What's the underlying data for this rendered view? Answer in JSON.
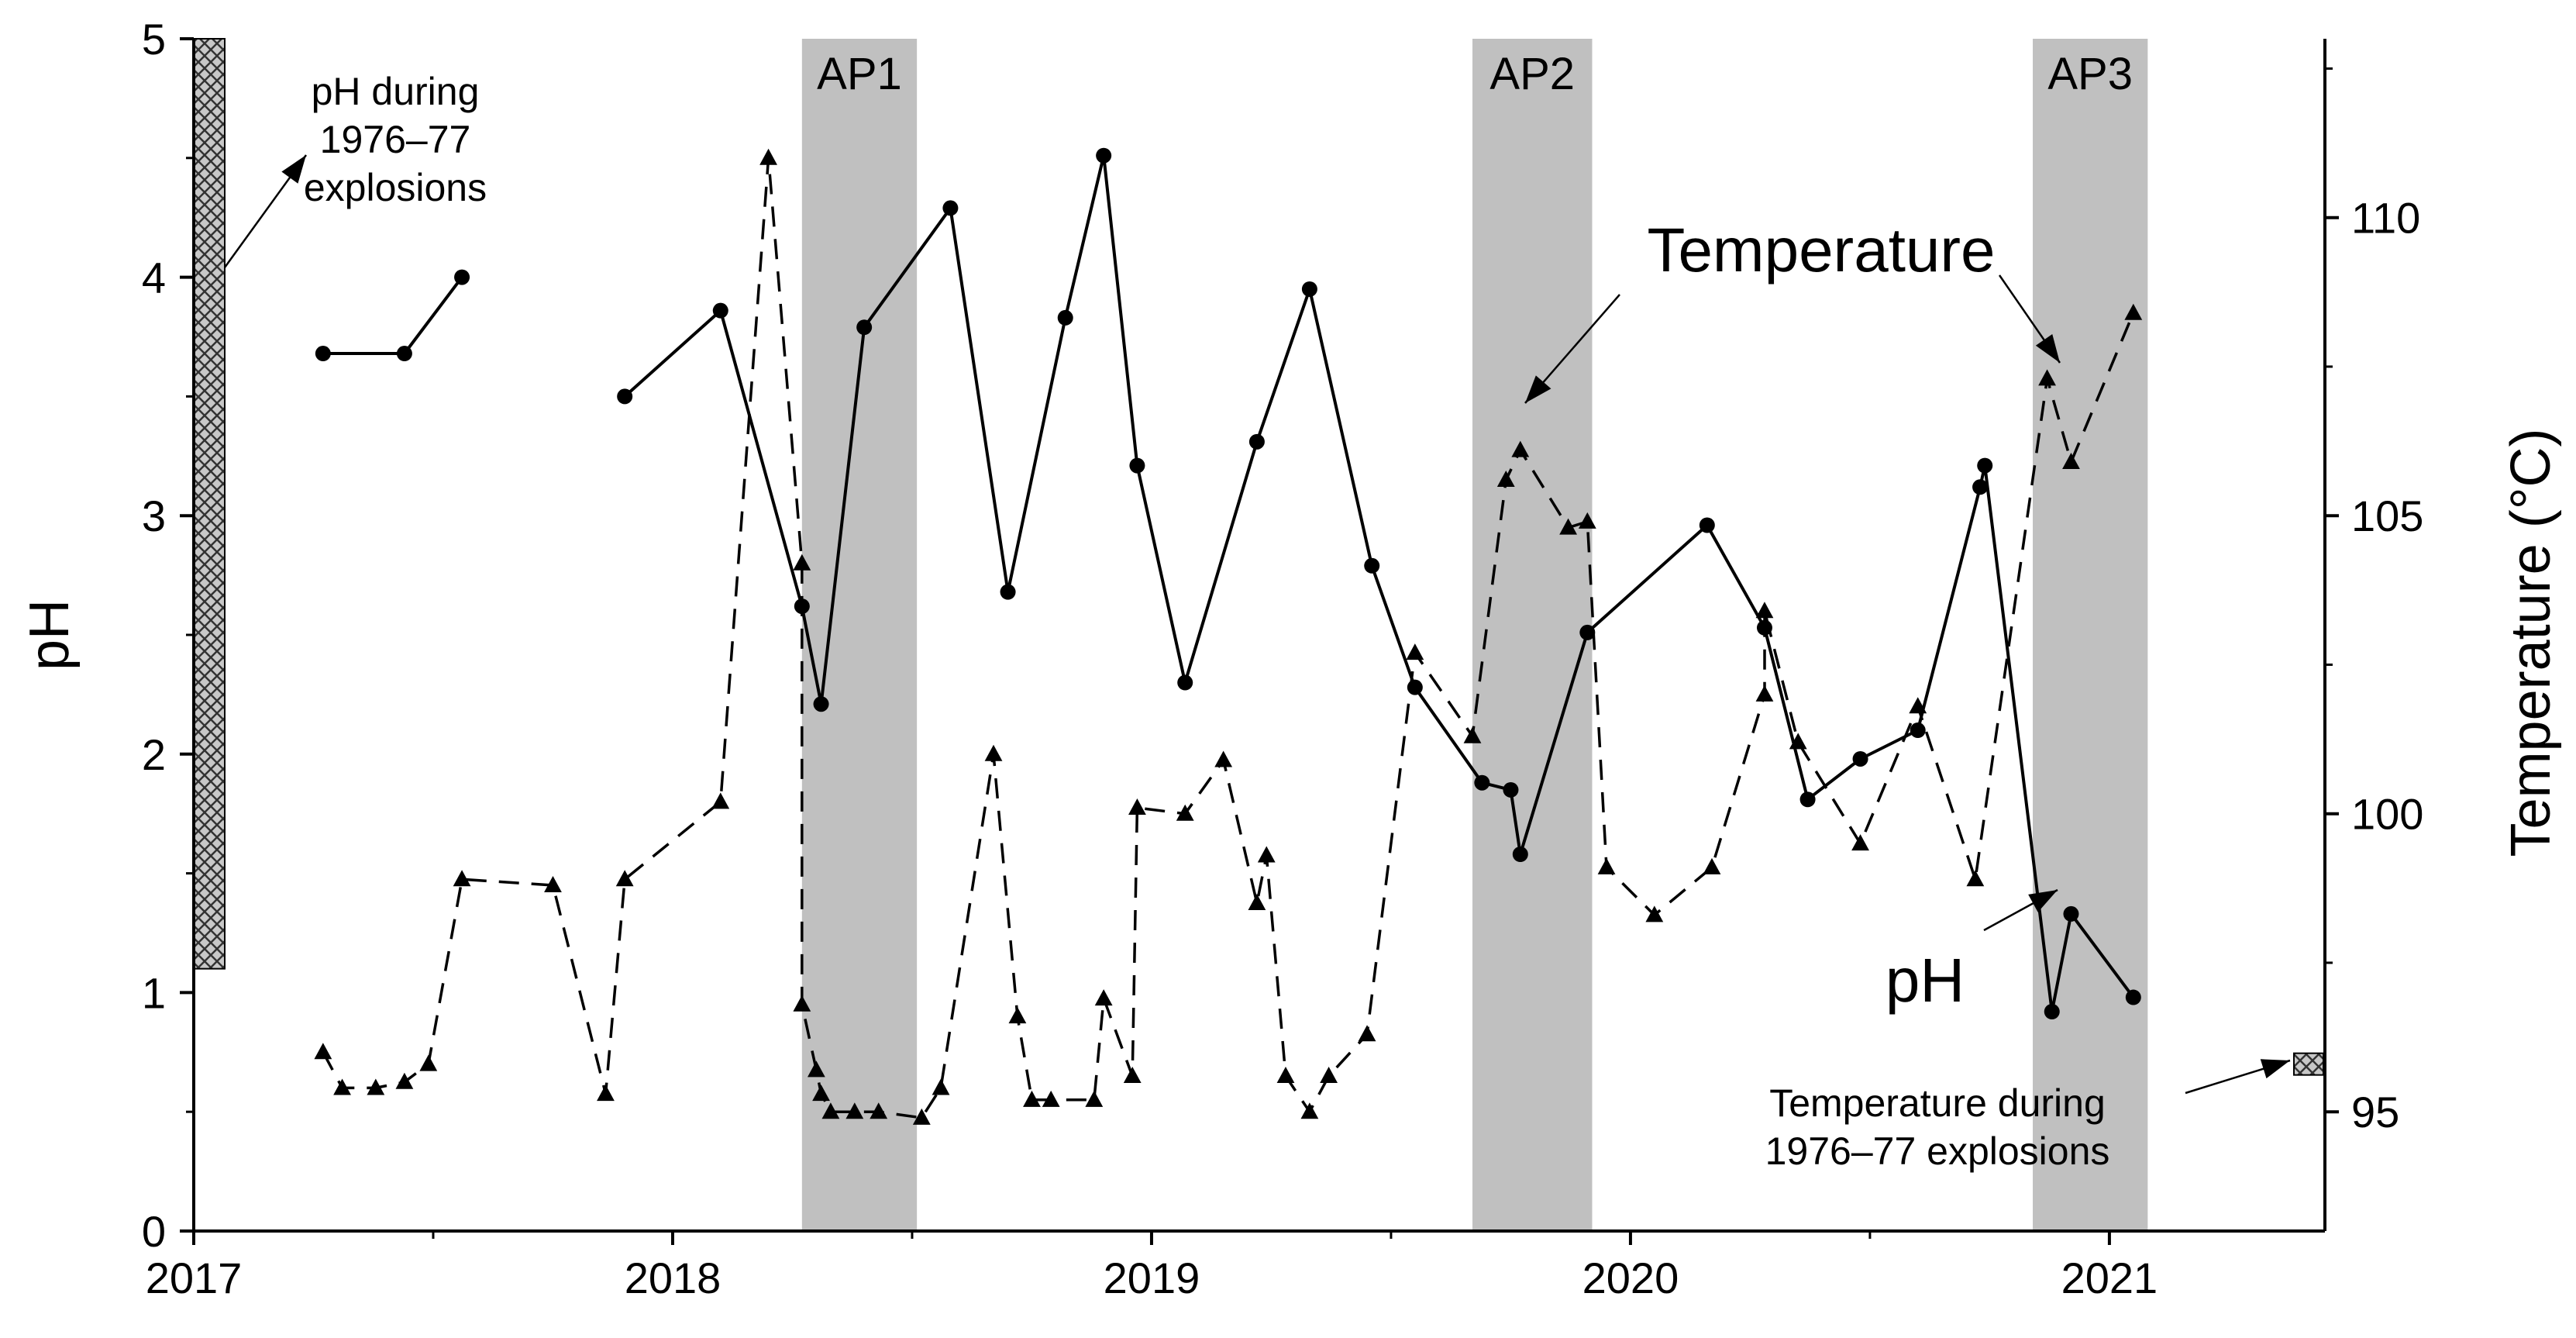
{
  "chart_data": {
    "type": "line",
    "title": "",
    "xlabel": "",
    "ylabel": "pH",
    "y2label": "Temperature (°C)",
    "xlim": [
      2017.0,
      2021.45
    ],
    "ylim": [
      0,
      5
    ],
    "y2lim": [
      93,
      113
    ],
    "xticks": [
      "2017",
      "2018",
      "2019",
      "2020",
      "2021"
    ],
    "xtick_values": [
      2017,
      2018,
      2019,
      2020,
      2021
    ],
    "yticks": [
      "0",
      "1",
      "2",
      "3",
      "4",
      "5"
    ],
    "ytick_values": [
      0,
      1,
      2,
      3,
      4,
      5
    ],
    "y2ticks": [
      "95",
      "100",
      "105",
      "110"
    ],
    "y2tick_values": [
      95,
      100,
      105,
      110
    ],
    "bands": [
      {
        "label": "AP1",
        "x": [
          2018.27,
          2018.51
        ]
      },
      {
        "label": "AP2",
        "x": [
          2019.67,
          2019.92
        ]
      },
      {
        "label": "AP3",
        "x": [
          2020.84,
          2021.08
        ]
      }
    ],
    "historic": {
      "ph_label": "pH during 1976–77 explosions",
      "ph_label_lines": [
        "pH during",
        "1976–77",
        "explosions"
      ],
      "ph_range": [
        1.1,
        5.0
      ],
      "temp_label": "Temperature during 1976–77 explosions",
      "temp_label_lines": [
        "Temperature during",
        "1976–77 explosions"
      ],
      "temp_value": 95.8
    },
    "annotations": {
      "temperature": "Temperature",
      "ph": "pH"
    },
    "series": [
      {
        "name": "pH",
        "axis": "left",
        "style": "solid",
        "marker": "circle",
        "segments": [
          [
            [
              2017.27,
              3.68
            ],
            [
              2017.44,
              3.68
            ],
            [
              2017.56,
              4.0
            ]
          ],
          [
            [
              2017.9,
              3.5
            ],
            [
              2018.1,
              3.86
            ],
            [
              2018.27,
              2.62
            ],
            [
              2018.31,
              2.21
            ],
            [
              2018.4,
              3.79
            ],
            [
              2018.58,
              4.29
            ],
            [
              2018.7,
              2.68
            ],
            [
              2018.82,
              3.83
            ],
            [
              2018.9,
              4.51
            ],
            [
              2018.97,
              3.21
            ],
            [
              2019.07,
              2.3
            ],
            [
              2019.22,
              3.31
            ],
            [
              2019.33,
              3.95
            ],
            [
              2019.46,
              2.79
            ],
            [
              2019.55,
              2.28
            ],
            [
              2019.69,
              1.88
            ],
            [
              2019.75,
              1.85
            ],
            [
              2019.77,
              1.58
            ],
            [
              2019.91,
              2.51
            ],
            [
              2020.16,
              2.96
            ],
            [
              2020.28,
              2.53
            ],
            [
              2020.37,
              1.81
            ],
            [
              2020.48,
              1.98
            ],
            [
              2020.6,
              2.1
            ],
            [
              2020.73,
              3.12
            ],
            [
              2020.74,
              3.21
            ],
            [
              2020.88,
              0.92
            ],
            [
              2020.92,
              1.33
            ],
            [
              2021.05,
              0.98
            ]
          ]
        ]
      },
      {
        "name": "Temperature",
        "axis": "right",
        "style": "dashed",
        "marker": "triangle",
        "segments": [
          [
            [
              2017.27,
              96.0
            ],
            [
              2017.31,
              95.4
            ],
            [
              2017.38,
              95.4
            ],
            [
              2017.44,
              95.5
            ],
            [
              2017.49,
              95.8
            ],
            [
              2017.56,
              98.9
            ],
            [
              2017.75,
              98.8
            ],
            [
              2017.86,
              95.3
            ],
            [
              2017.9,
              98.9
            ],
            [
              2018.1,
              100.2
            ],
            [
              2018.2,
              111.0
            ],
            [
              2018.27,
              104.2
            ],
            [
              2018.27,
              96.8
            ],
            [
              2018.3,
              95.7
            ],
            [
              2018.31,
              95.3
            ],
            [
              2018.33,
              95.0
            ],
            [
              2018.38,
              95.0
            ],
            [
              2018.43,
              95.0
            ],
            [
              2018.52,
              94.9
            ],
            [
              2018.56,
              95.4
            ],
            [
              2018.67,
              101.0
            ],
            [
              2018.72,
              96.6
            ],
            [
              2018.75,
              95.2
            ],
            [
              2018.79,
              95.2
            ],
            [
              2018.88,
              95.2
            ],
            [
              2018.9,
              96.9
            ],
            [
              2018.96,
              95.6
            ],
            [
              2018.97,
              100.1
            ],
            [
              2019.07,
              100.0
            ],
            [
              2019.15,
              100.9
            ],
            [
              2019.22,
              98.5
            ],
            [
              2019.24,
              99.3
            ],
            [
              2019.28,
              95.6
            ],
            [
              2019.33,
              95.0
            ],
            [
              2019.37,
              95.6
            ],
            [
              2019.45,
              96.3
            ],
            [
              2019.55,
              102.7
            ],
            [
              2019.67,
              101.3
            ],
            [
              2019.74,
              105.6
            ],
            [
              2019.77,
              106.1
            ],
            [
              2019.87,
              104.8
            ],
            [
              2019.91,
              104.9
            ],
            [
              2019.95,
              99.1
            ],
            [
              2020.05,
              98.3
            ],
            [
              2020.17,
              99.1
            ],
            [
              2020.28,
              102.0
            ],
            [
              2020.28,
              103.4
            ],
            [
              2020.35,
              101.2
            ],
            [
              2020.48,
              99.5
            ],
            [
              2020.6,
              101.8
            ],
            [
              2020.72,
              98.9
            ],
            [
              2020.87,
              107.3
            ],
            [
              2020.92,
              105.9
            ],
            [
              2021.05,
              108.4
            ]
          ]
        ]
      }
    ]
  }
}
